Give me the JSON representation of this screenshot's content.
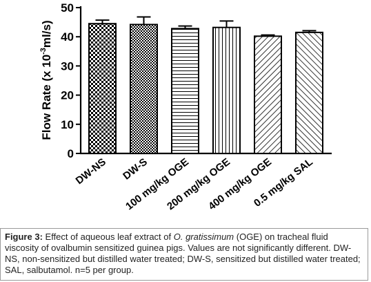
{
  "chart_data": {
    "type": "bar",
    "categories": [
      "DW-NS",
      "DW-S",
      "100 mg/kg OGE",
      "200 mg/kg OGE",
      "400 mg/kg OGE",
      "0.5 mg/kg SAL"
    ],
    "values": [
      44.5,
      44.2,
      42.8,
      43.2,
      40.2,
      41.5
    ],
    "errors": [
      1.2,
      2.6,
      0.9,
      2.2,
      0.4,
      0.6
    ],
    "patterns": [
      "checker",
      "checker-fine",
      "horizontal",
      "vertical",
      "diag-down",
      "diag-up"
    ],
    "ylabel_prefix": "Flow Rate (x 10",
    "ylabel_sup": "-3",
    "ylabel_suffix": "ml/s)",
    "ylim": [
      0,
      50
    ],
    "yticks": [
      0,
      10,
      20,
      30,
      40,
      50
    ],
    "grid": false,
    "colors": {
      "bar_fill": "#ffffff",
      "bar_stroke": "#000000",
      "pattern": "#000000"
    }
  },
  "caption": {
    "figure_label": "Figure 3:",
    "text_1": " Effect of aqueous leaf extract of ",
    "species": "O. gratissimum",
    "text_2": " (OGE) on tracheal fluid viscosity of ovalbumin sensitized guinea pigs. Values are not significantly different. DW-NS, non-sensitized but distilled water treated; DW-S, sensitized but distilled water treated; SAL, salbutamol. n=5 per group."
  }
}
